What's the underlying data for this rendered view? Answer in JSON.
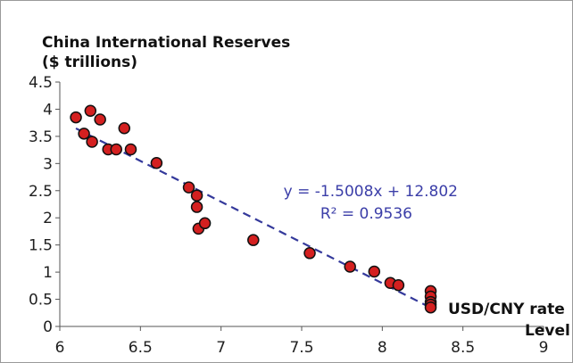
{
  "chart_data": {
    "type": "scatter",
    "title_line1": "China International Reserves",
    "title_line2": "($ trillions)",
    "xlabel_line1": "USD/CNY rate",
    "xlabel_line2": "Level",
    "xlim": [
      6,
      9
    ],
    "ylim": [
      0,
      4.5
    ],
    "x_ticks": [
      "6",
      "6.5",
      "7",
      "7.5",
      "8",
      "8.5",
      "9"
    ],
    "y_ticks": [
      "0",
      "0.5",
      "1",
      "1.5",
      "2",
      "2.5",
      "3",
      "3.5",
      "4",
      "4.5"
    ],
    "x_tick_values": [
      6,
      6.5,
      7,
      7.5,
      8,
      8.5,
      9
    ],
    "y_tick_values": [
      0,
      0.5,
      1,
      1.5,
      2,
      2.5,
      3,
      3.5,
      4,
      4.5
    ],
    "grid": false,
    "points": [
      {
        "x": 6.1,
        "y": 3.85
      },
      {
        "x": 6.15,
        "y": 3.55
      },
      {
        "x": 6.19,
        "y": 3.97
      },
      {
        "x": 6.2,
        "y": 3.4
      },
      {
        "x": 6.25,
        "y": 3.81
      },
      {
        "x": 6.3,
        "y": 3.26
      },
      {
        "x": 6.35,
        "y": 3.26
      },
      {
        "x": 6.4,
        "y": 3.65
      },
      {
        "x": 6.44,
        "y": 3.26
      },
      {
        "x": 6.6,
        "y": 3.01
      },
      {
        "x": 6.8,
        "y": 2.56
      },
      {
        "x": 6.85,
        "y": 2.41
      },
      {
        "x": 6.85,
        "y": 2.2
      },
      {
        "x": 6.86,
        "y": 1.8
      },
      {
        "x": 6.9,
        "y": 1.9
      },
      {
        "x": 7.2,
        "y": 1.59
      },
      {
        "x": 7.55,
        "y": 1.35
      },
      {
        "x": 7.8,
        "y": 1.1
      },
      {
        "x": 7.95,
        "y": 1.01
      },
      {
        "x": 8.05,
        "y": 0.8
      },
      {
        "x": 8.1,
        "y": 0.76
      },
      {
        "x": 8.3,
        "y": 0.65
      },
      {
        "x": 8.3,
        "y": 0.55
      },
      {
        "x": 8.3,
        "y": 0.45
      },
      {
        "x": 8.3,
        "y": 0.4
      },
      {
        "x": 8.3,
        "y": 0.35
      }
    ],
    "trendline": {
      "slope": -1.5008,
      "intercept": 12.802,
      "x_range": [
        6.1,
        8.3
      ],
      "equation_text": "y = -1.5008x + 12.802",
      "r2_text": "R² = 0.9536"
    },
    "colors": {
      "marker_fill": "#d42020",
      "marker_stroke": "#111111",
      "trendline": "#34399b",
      "annotation": "#3b3ea8",
      "axis": "#555555"
    }
  }
}
